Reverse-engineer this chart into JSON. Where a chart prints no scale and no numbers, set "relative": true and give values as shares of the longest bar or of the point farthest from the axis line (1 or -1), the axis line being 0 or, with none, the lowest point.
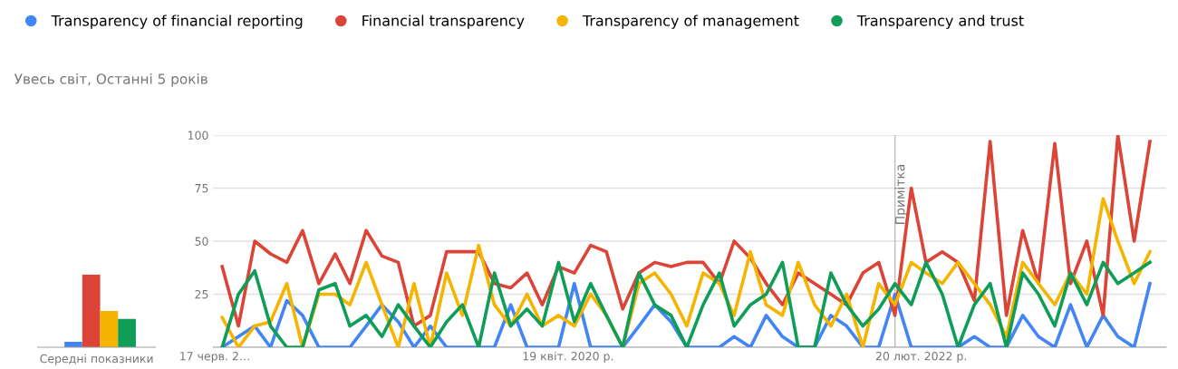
{
  "chart_data": [
    {
      "type": "bar",
      "relative": true,
      "categories": [
        null,
        null,
        null,
        null
      ],
      "values": [
        0.075,
        1,
        0.5,
        0.39
      ],
      "colors": [
        "#4285f4",
        "#db4437",
        "#f4b400",
        "#0f9d58"
      ],
      "xlabel": "Середні показники"
    },
    {
      "type": "line",
      "subtitle": "Увесь світ, Останні 5 років",
      "legend": "top",
      "marker": "none",
      "line_style": "solid",
      "grid": "y",
      "x": [
        "2018-07",
        "2018-08",
        "2018-09",
        "2018-10",
        "2018-11",
        "2018-12",
        "2019-01",
        "2019-02",
        "2019-03",
        "2019-04",
        "2019-05",
        "2019-06",
        "2019-07",
        "2019-08",
        "2019-09",
        "2019-10",
        "2019-11",
        "2019-12",
        "2020-01",
        "2020-02",
        "2020-03",
        "2020-04",
        "2020-05",
        "2020-06",
        "2020-07",
        "2020-08",
        "2020-09",
        "2020-10",
        "2020-11",
        "2020-12",
        "2021-01",
        "2021-02",
        "2021-03",
        "2021-04",
        "2021-05",
        "2021-06",
        "2021-07",
        "2021-08",
        "2021-09",
        "2021-10",
        "2021-11",
        "2021-12",
        "2022-01",
        "2022-02",
        "2022-03",
        "2022-04",
        "2022-05",
        "2022-06",
        "2022-07",
        "2022-08",
        "2022-09",
        "2022-10",
        "2022-11",
        "2022-12",
        "2023-01",
        "2023-02",
        "2023-03",
        "2023-04",
        "2023-05"
      ],
      "xlim": [
        "2018-06-14",
        "2023-06-01"
      ],
      "xticks": [
        {
          "value": "2018-06-17",
          "label": "17 черв. 2…"
        },
        {
          "value": "2020-04-19",
          "label": "19 квіт. 2020 р."
        },
        {
          "value": "2022-02-20",
          "label": "20 лют. 2022 р."
        }
      ],
      "ylim": [
        0,
        100
      ],
      "yticks": [
        {
          "value": 0,
          "label": null
        },
        25,
        50,
        75,
        100
      ],
      "ref_lines": [
        {
          "axis": "x",
          "value": "2022-01-01",
          "label": "Примітка",
          "color": "#bdbdbd"
        }
      ],
      "series": [
        {
          "name": "Transparency of financial reporting",
          "color": "#4285f4",
          "values": [
            0,
            5,
            10,
            0,
            22,
            15,
            0,
            0,
            0,
            10,
            20,
            12,
            0,
            10,
            0,
            0,
            0,
            0,
            20,
            0,
            0,
            0,
            30,
            0,
            0,
            0,
            10,
            20,
            12,
            0,
            0,
            0,
            5,
            0,
            15,
            5,
            0,
            0,
            15,
            10,
            0,
            0,
            25,
            0,
            0,
            0,
            0,
            5,
            0,
            0,
            15,
            5,
            0,
            20,
            0,
            15,
            5,
            0,
            30
          ]
        },
        {
          "name": "Financial transparency",
          "color": "#db4437",
          "values": [
            38,
            10,
            50,
            44,
            40,
            55,
            30,
            44,
            30,
            55,
            43,
            40,
            10,
            15,
            45,
            45,
            45,
            30,
            28,
            35,
            20,
            38,
            35,
            48,
            45,
            18,
            35,
            40,
            38,
            40,
            40,
            30,
            50,
            42,
            30,
            20,
            35,
            30,
            25,
            20,
            35,
            40,
            15,
            75,
            40,
            45,
            40,
            22,
            97,
            15,
            55,
            30,
            96,
            30,
            50,
            15,
            100,
            50,
            97
          ]
        },
        {
          "name": "Transparency of management",
          "color": "#f4b400",
          "values": [
            14,
            0,
            10,
            12,
            30,
            0,
            25,
            25,
            20,
            40,
            20,
            0,
            30,
            0,
            35,
            15,
            48,
            20,
            10,
            25,
            10,
            15,
            10,
            25,
            15,
            0,
            30,
            35,
            25,
            10,
            35,
            30,
            15,
            45,
            20,
            15,
            40,
            20,
            10,
            25,
            0,
            30,
            20,
            40,
            35,
            30,
            40,
            30,
            20,
            5,
            40,
            30,
            20,
            35,
            25,
            70,
            50,
            30,
            45
          ]
        },
        {
          "name": "Transparency and trust",
          "color": "#0f9d58",
          "values": [
            0,
            25,
            36,
            10,
            0,
            0,
            27,
            30,
            10,
            15,
            5,
            20,
            10,
            0,
            12,
            20,
            0,
            35,
            10,
            18,
            10,
            40,
            12,
            30,
            15,
            0,
            35,
            20,
            15,
            0,
            20,
            35,
            10,
            20,
            25,
            40,
            0,
            0,
            35,
            20,
            10,
            18,
            30,
            20,
            40,
            25,
            0,
            20,
            30,
            0,
            35,
            25,
            10,
            35,
            20,
            40,
            30,
            35,
            40
          ]
        }
      ]
    }
  ]
}
